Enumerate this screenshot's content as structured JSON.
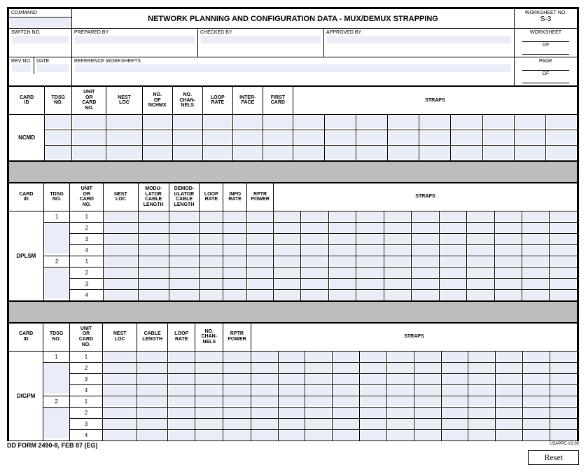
{
  "header": {
    "command_label": "COMMAND",
    "title": "NETWORK PLANNING AND CONFIGURATION DATA - MUX/DEMUX  STRAPPING",
    "worksheet_no_label": "WORKSHEET NO.",
    "worksheet_no_value": "S-3",
    "switch_no_label": "SWITCH NO.",
    "prepared_by_label": "PREPARED BY",
    "checked_by_label": "CHECKED BY",
    "approved_by_label": "APPROVED BY",
    "worksheet_label": "WORKSHEET",
    "of_label": "OF",
    "rev_no_label": "REV NO.",
    "date_label": "DATE",
    "reference_ws_label": "REFERENCE WORKSHEETS",
    "page_label": "PAGE"
  },
  "section1": {
    "card_id": "NCMD",
    "headers": {
      "card_id": "CARD ID",
      "tdsg_no": "TDSG NO.",
      "unit_card": "UNIT OR CARD NO.",
      "nest_loc": "NEST LOC",
      "no_nchmx": "NO. OF NCHMX",
      "no_channels": "NO. CHAN- NELS",
      "loop_rate": "LOOP RATE",
      "interface": "INTER- FACE",
      "first_card": "FIRST CARD",
      "straps": "STRAPS"
    },
    "row_count": 3,
    "strap_cols": 9
  },
  "section2": {
    "card_id": "DPLSM",
    "headers": {
      "card_id": "CARD ID",
      "tdsg_no": "TDSG NO.",
      "unit_card": "UNIT OR CARD NO.",
      "nest_loc": "NEST LOC",
      "mod_cable": "MODU- LATOR CABLE LENGTH",
      "demod_cable": "DEMOD- ULATOR CABLE LENGTH",
      "loop_rate": "LOOP RATE",
      "info_rate": "INFO RATE",
      "rptr_power": "RPTR POWER",
      "straps": "STRAPS"
    },
    "tdsg_groups": [
      "1",
      "2"
    ],
    "cards_per_group": [
      "1",
      "2",
      "3",
      "4"
    ],
    "strap_cols": 11
  },
  "section3": {
    "card_id": "DIGPM",
    "headers": {
      "card_id": "CARD ID",
      "tdsg_no": "TDSG NO.",
      "unit_card": "UNIT OR CARD NO.",
      "nest_loc": "NEST LOC",
      "cable_length": "CABLE LENGTH",
      "loop_rate": "LOOP RATE",
      "no_channels": "NO. CHAN- NELS",
      "rptr_power": "RPTR POWER",
      "straps": "STRAPS"
    },
    "tdsg_groups": [
      "1",
      "2"
    ],
    "cards_per_group": [
      "1",
      "2",
      "3",
      "4"
    ],
    "strap_cols": 12
  },
  "footer": {
    "form_id": "DD FORM 2490-8, FEB 87 (EG)",
    "usappc": "USAPPC V1.00",
    "reset": "Reset"
  },
  "colors": {
    "input_fill": "#e9edf7",
    "spacer_fill": "#bdbdbd",
    "border": "#000000",
    "background": "#ffffff"
  }
}
